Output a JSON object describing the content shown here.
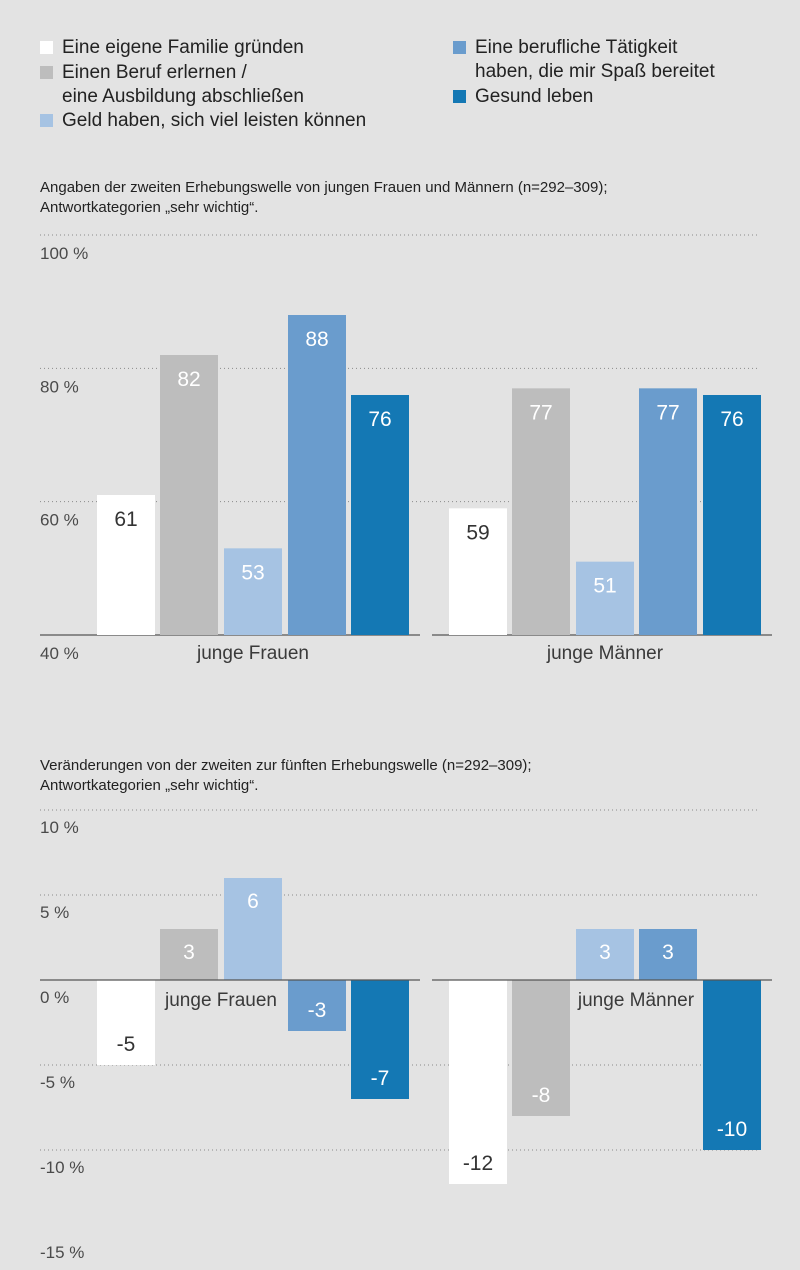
{
  "legend": [
    {
      "label": "Eine eigene Familie gründen",
      "color": "#ffffff"
    },
    {
      "label": "Einen Beruf erlernen /\neine Ausbildung abschließen",
      "color": "#bdbdbd"
    },
    {
      "label": "Geld haben, sich viel leisten können",
      "color": "#a6c3e3"
    },
    {
      "label": "Eine berufliche Tätigkeit\nhaben, die mir Spaß bereitet",
      "color": "#6a9ccd"
    },
    {
      "label": "Gesund leben",
      "color": "#1478b4"
    }
  ],
  "chart_data": [
    {
      "type": "bar",
      "title": "Angaben der zweiten Erhebungswelle von jungen Frauen und Männern (n=292–309);\nAntwortkategorien „sehr wichtig“.",
      "categories": [
        "junge Frauen",
        "junge Männer"
      ],
      "series": [
        {
          "name": "Eine eigene Familie gründen",
          "values": [
            61,
            59
          ]
        },
        {
          "name": "Einen Beruf erlernen / eine Ausbildung abschließen",
          "values": [
            82,
            77
          ]
        },
        {
          "name": "Geld haben, sich viel leisten können",
          "values": [
            53,
            51
          ]
        },
        {
          "name": "Eine berufliche Tätigkeit haben, die mir Spaß bereitet",
          "values": [
            88,
            77
          ]
        },
        {
          "name": "Gesund leben",
          "values": [
            76,
            76
          ]
        }
      ],
      "ylim": [
        40,
        100
      ],
      "yticks": [
        100,
        80,
        60,
        40
      ],
      "ytick_labels": [
        "100 %",
        "80 %",
        "60 %",
        "40 %"
      ],
      "grid": true,
      "legend_position": "top"
    },
    {
      "type": "bar",
      "title": "Veränderungen von der zweiten zur fünften Erhebungswelle (n=292–309);\nAntwortkategorien „sehr wichtig“.",
      "categories": [
        "junge Frauen",
        "junge Männer"
      ],
      "series": [
        {
          "name": "Eine eigene Familie gründen",
          "values": [
            -5,
            -12
          ]
        },
        {
          "name": "Einen Beruf erlernen / eine Ausbildung abschließen",
          "values": [
            3,
            -8
          ]
        },
        {
          "name": "Geld haben, sich viel leisten können",
          "values": [
            6,
            3
          ]
        },
        {
          "name": "Eine berufliche Tätigkeit haben, die mir Spaß bereitet",
          "values": [
            -3,
            3
          ]
        },
        {
          "name": "Gesund leben",
          "values": [
            -7,
            -10
          ]
        }
      ],
      "ylim": [
        -15,
        10
      ],
      "yticks": [
        10,
        5,
        0,
        -5,
        -10,
        -15
      ],
      "ytick_labels": [
        "10 %",
        "5 %",
        "0 %",
        "-5 %",
        "-10 %",
        "-15 %"
      ],
      "grid": true,
      "legend_position": "top"
    }
  ]
}
